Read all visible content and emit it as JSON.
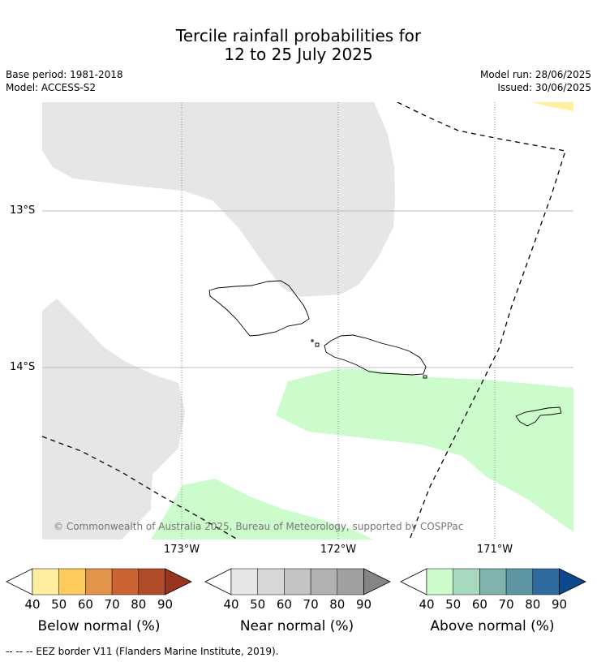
{
  "title": {
    "line1": "Tercile rainfall probabilities for",
    "line2": "12 to 25 July 2025"
  },
  "meta": {
    "base_period": "Base period: 1981-2018",
    "model": "Model: ACCESS-S2",
    "model_run": "Model run: 28/06/2025",
    "issued": "Issued: 30/06/2025"
  },
  "map": {
    "lat_labels": [
      "13°S",
      "14°S"
    ],
    "lon_labels": [
      "173°W",
      "172°W",
      "171°W"
    ],
    "copyright": "© Commonwealth of Australia 2025, Bureau of Meteorology, supported by COSPPac",
    "colors": {
      "near_normal_40": "#e6e6e6",
      "above_normal_40": "#ccfccc",
      "below_normal_40": "#fff0a0"
    }
  },
  "colorbars": [
    {
      "label": "Below normal (%)",
      "ticks": [
        "40",
        "50",
        "60",
        "70",
        "80",
        "90"
      ],
      "colors": [
        "#ffeda0",
        "#fecc5c",
        "#e1944a",
        "#cc6333",
        "#b24b28",
        "#98351f"
      ]
    },
    {
      "label": "Near normal (%)",
      "ticks": [
        "40",
        "50",
        "60",
        "70",
        "80",
        "90"
      ],
      "colors": [
        "#e6e6e6",
        "#d7d7d7",
        "#c4c4c4",
        "#b1b1b1",
        "#a0a0a0",
        "#858585"
      ]
    },
    {
      "label": "Above normal (%)",
      "ticks": [
        "40",
        "50",
        "60",
        "70",
        "80",
        "90"
      ],
      "colors": [
        "#ccfccc",
        "#a6d9bd",
        "#80b3ad",
        "#5d95a2",
        "#2f6a9e",
        "#0f478c"
      ]
    }
  ],
  "footer": "--  --  -- EEZ border V11 (Flanders Marine Institute, 2019)."
}
